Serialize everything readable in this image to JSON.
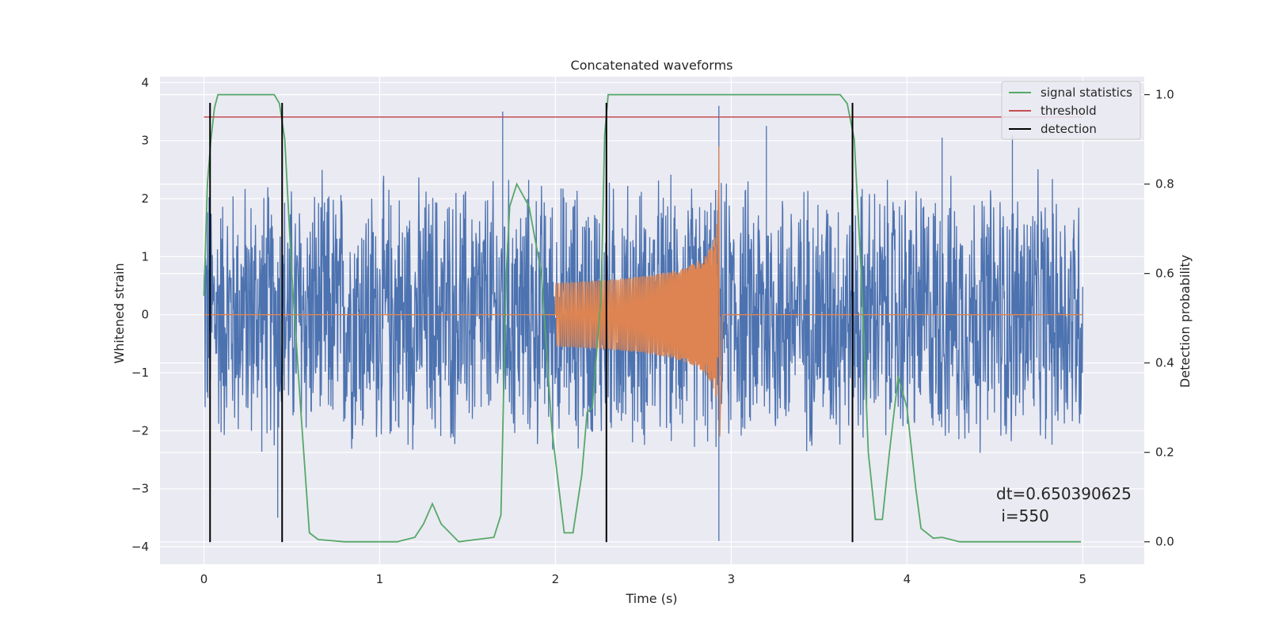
{
  "chart_data": {
    "type": "line",
    "title": "Concatenated waveforms",
    "xlabel": "Time (s)",
    "ylabel": "Whitened strain",
    "ylabel_right": "Detection probability",
    "xlim": [
      -0.25,
      5.35
    ],
    "ylim": [
      -4.3,
      4.1
    ],
    "ylim_right": [
      -0.05,
      1.04
    ],
    "xticks": [
      0,
      1,
      2,
      3,
      4,
      5
    ],
    "yticks": [
      -4,
      -3,
      -2,
      -1,
      0,
      1,
      2,
      3,
      4
    ],
    "yticks_right": [
      0.0,
      0.2,
      0.4,
      0.6,
      0.8,
      1.0
    ],
    "xtick_labels": [
      "0",
      "1",
      "2",
      "3",
      "4",
      "5"
    ],
    "ytick_labels": [
      "−4",
      "−3",
      "−2",
      "−1",
      "0",
      "1",
      "2",
      "3",
      "4"
    ],
    "ytick_right_labels": [
      "0.0",
      "0.2",
      "0.4",
      "0.6",
      "0.8",
      "1.0"
    ],
    "grid": true,
    "legend_position": "top-right",
    "colors": {
      "noise": "#4c72b0",
      "waveform": "#dd8452",
      "signal_statistics": "#55a868",
      "threshold": "#c44e52",
      "detection": "#000000",
      "axes_face": "#eaeaf2",
      "grid": "#ffffff"
    },
    "series": [
      {
        "key": "noise",
        "axis": "left",
        "x_range": [
          0,
          5
        ],
        "approx_amplitude": 2.6,
        "spikes": [
          [
            0.42,
            -3.5
          ],
          [
            1.7,
            3.5
          ],
          [
            2.93,
            3.6
          ],
          [
            2.93,
            -3.9
          ],
          [
            3.2,
            3.25
          ],
          [
            4.2,
            3.05
          ],
          [
            4.6,
            3.1
          ]
        ]
      },
      {
        "key": "waveform",
        "axis": "left",
        "x_range": [
          2.0,
          2.95
        ],
        "envelope_start": 0.55,
        "peak_value": 2.9,
        "peak_time": 2.93,
        "min_value": -2.1
      },
      {
        "name": "signal statistics",
        "axis": "right",
        "x": [
          0.0,
          0.02,
          0.04,
          0.06,
          0.08,
          0.12,
          0.4,
          0.43,
          0.46,
          0.5,
          0.55,
          0.6,
          0.65,
          0.8,
          1.1,
          1.2,
          1.25,
          1.3,
          1.35,
          1.45,
          1.65,
          1.69,
          1.72,
          1.74,
          1.78,
          1.85,
          1.92,
          1.98,
          2.05,
          2.1,
          2.15,
          2.18,
          2.21,
          2.26,
          2.28,
          2.3,
          2.32,
          2.4,
          3.62,
          3.66,
          3.7,
          3.74,
          3.78,
          3.82,
          3.86,
          3.9,
          3.95,
          4.0,
          4.05,
          4.08,
          4.15,
          4.2,
          4.3,
          4.99
        ],
        "values": [
          0.55,
          0.8,
          0.9,
          0.97,
          1.0,
          1.0,
          1.0,
          0.98,
          0.9,
          0.6,
          0.3,
          0.02,
          0.005,
          0.0,
          0.0,
          0.01,
          0.04,
          0.085,
          0.04,
          0.0,
          0.01,
          0.06,
          0.6,
          0.75,
          0.8,
          0.75,
          0.6,
          0.25,
          0.02,
          0.02,
          0.15,
          0.29,
          0.3,
          0.55,
          0.91,
          1.0,
          1.0,
          1.0,
          1.0,
          0.98,
          0.9,
          0.6,
          0.2,
          0.05,
          0.05,
          0.2,
          0.37,
          0.3,
          0.12,
          0.03,
          0.008,
          0.01,
          0.0,
          0.0
        ]
      },
      {
        "name": "threshold",
        "axis": "right",
        "x": [
          0,
          5
        ],
        "values": [
          0.95,
          0.95
        ]
      },
      {
        "name": "detection",
        "axis": "left",
        "times": [
          0.035,
          0.445,
          2.29,
          3.69
        ],
        "from": -3.92,
        "to": 3.65
      }
    ],
    "annotation": "dt=0.650390625\n i=550",
    "annotation_lines": [
      "dt=0.650390625",
      " i=550"
    ]
  }
}
